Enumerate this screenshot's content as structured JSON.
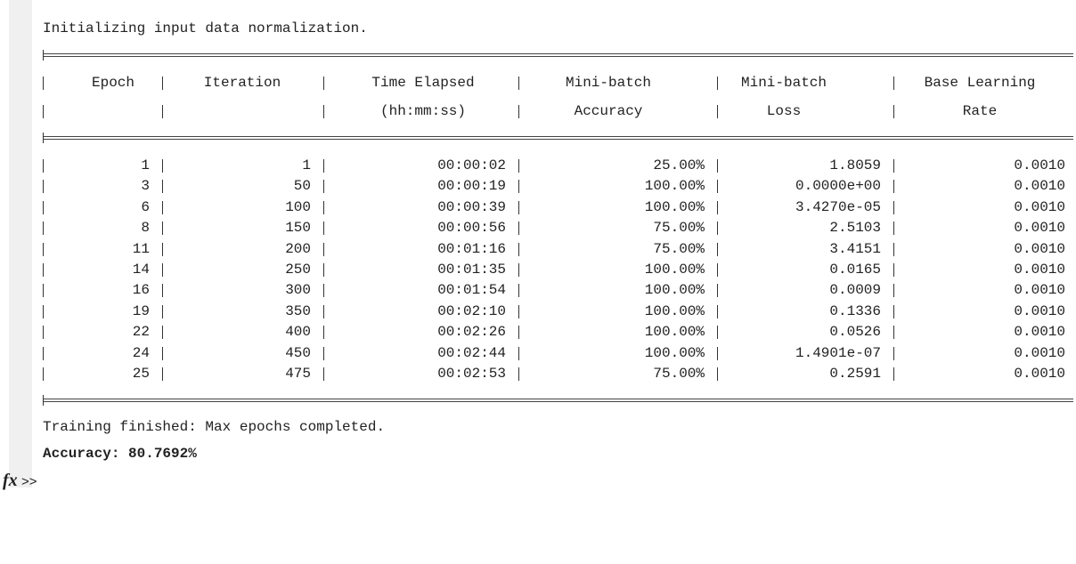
{
  "console": {
    "init": "Initializing input data normalization.",
    "table": {
      "headers": [
        [
          "Epoch"
        ],
        [
          "Iteration"
        ],
        [
          "Time Elapsed",
          "(hh:mm:ss)"
        ],
        [
          "Mini-batch",
          "Accuracy"
        ],
        [
          "Mini-batch",
          "Loss"
        ],
        [
          "Base Learning",
          "Rate"
        ]
      ],
      "rows": [
        [
          "1",
          "1",
          "00:00:02",
          "25.00%",
          "1.8059",
          "0.0010"
        ],
        [
          "3",
          "50",
          "00:00:19",
          "100.00%",
          "0.0000e+00",
          "0.0010"
        ],
        [
          "6",
          "100",
          "00:00:39",
          "100.00%",
          "3.4270e-05",
          "0.0010"
        ],
        [
          "8",
          "150",
          "00:00:56",
          "75.00%",
          "2.5103",
          "0.0010"
        ],
        [
          "11",
          "200",
          "00:01:16",
          "75.00%",
          "3.4151",
          "0.0010"
        ],
        [
          "14",
          "250",
          "00:01:35",
          "100.00%",
          "0.0165",
          "0.0010"
        ],
        [
          "16",
          "300",
          "00:01:54",
          "100.00%",
          "0.0009",
          "0.0010"
        ],
        [
          "19",
          "350",
          "00:02:10",
          "100.00%",
          "0.1336",
          "0.0010"
        ],
        [
          "22",
          "400",
          "00:02:26",
          "100.00%",
          "0.0526",
          "0.0010"
        ],
        [
          "24",
          "450",
          "00:02:44",
          "100.00%",
          "1.4901e-07",
          "0.0010"
        ],
        [
          "25",
          "475",
          "00:02:53",
          "75.00%",
          "0.2591",
          "0.0010"
        ]
      ]
    },
    "finished": "Training finished: Max epochs completed.",
    "accuracy": "Accuracy: 80.7692%",
    "prompt_icon": "fx",
    "prompt": ">>"
  }
}
